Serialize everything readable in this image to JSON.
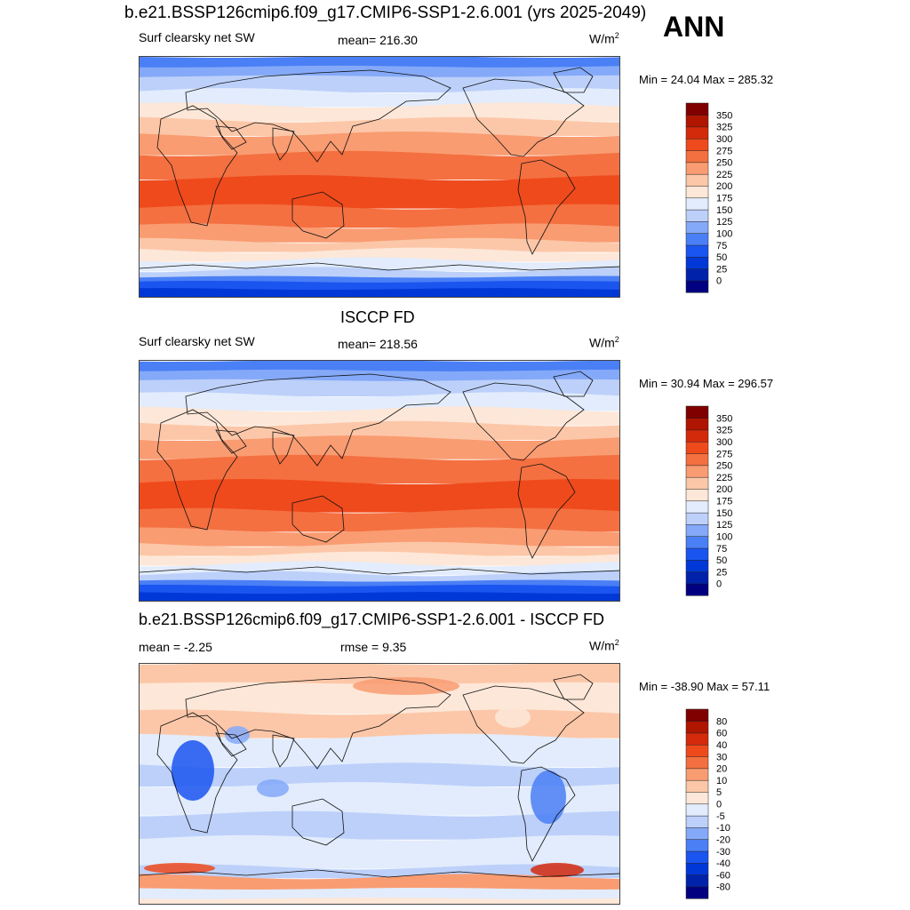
{
  "header": {
    "title": "b.e21.BSSP126cmip6.f09_g17.CMIP6-SSP1-2.6.001 (yrs 2025-2049)",
    "season": "ANN"
  },
  "panels": [
    {
      "id": "model",
      "title": "",
      "left_label": "Surf clearsky net SW",
      "center_label": "mean= 216.30",
      "units_base": "W/m",
      "units_exp": "2",
      "minmax": "Min =  24.04 Max = 285.32",
      "palette": "sw",
      "colorbar_labels": [
        "0",
        "25",
        "50",
        "75",
        "100",
        "125",
        "150",
        "175",
        "200",
        "225",
        "250",
        "275",
        "300",
        "325",
        "350"
      ]
    },
    {
      "id": "obs",
      "title": "ISCCP FD",
      "left_label": "Surf clearsky net SW",
      "center_label": "mean= 218.56",
      "units_base": "W/m",
      "units_exp": "2",
      "minmax": "Min =  30.94 Max = 296.57",
      "palette": "sw",
      "colorbar_labels": [
        "0",
        "25",
        "50",
        "75",
        "100",
        "125",
        "150",
        "175",
        "200",
        "225",
        "250",
        "275",
        "300",
        "325",
        "350"
      ]
    },
    {
      "id": "diff",
      "title": "b.e21.BSSP126cmip6.f09_g17.CMIP6-SSP1-2.6.001 - ISCCP FD",
      "left_label": "mean =  -2.25",
      "center_label": "rmse =   9.35",
      "units_base": "W/m",
      "units_exp": "2",
      "minmax": "Min = -38.90 Max =  57.11",
      "palette": "diff",
      "colorbar_labels": [
        "-80",
        "-60",
        "-40",
        "-30",
        "-20",
        "-10",
        "-5",
        "0",
        "5",
        "10",
        "20",
        "30",
        "40",
        "60",
        "80"
      ]
    }
  ],
  "palettes": {
    "sw": [
      "#000080",
      "#0022aa",
      "#0038d8",
      "#1a55f0",
      "#4a7ff5",
      "#84a9f8",
      "#bcd0fa",
      "#e2ecfc",
      "#fde7d8",
      "#fcc7a8",
      "#f99c72",
      "#f47040",
      "#ef4a1c",
      "#d42a0c",
      "#b01500",
      "#800000"
    ],
    "diff": [
      "#000080",
      "#0022aa",
      "#0038d8",
      "#1a55f0",
      "#4a7ff5",
      "#84a9f8",
      "#bcd0fa",
      "#e2ecfc",
      "#fde7d8",
      "#fcc7a8",
      "#f99c72",
      "#f47040",
      "#ef4a1c",
      "#d42a0c",
      "#b01500",
      "#800000"
    ]
  }
}
